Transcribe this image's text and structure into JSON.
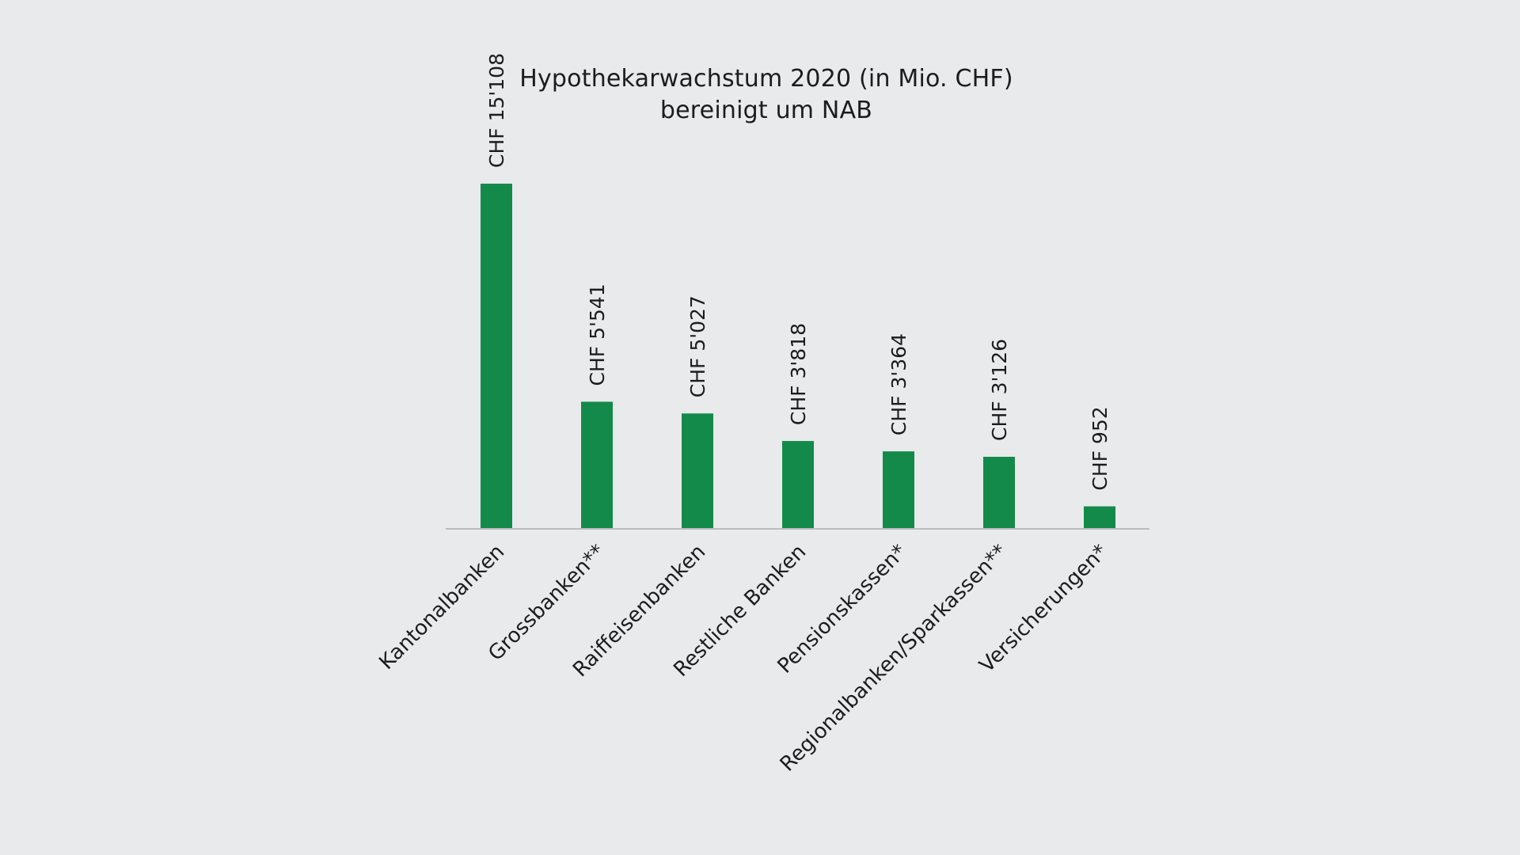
{
  "chart_data": {
    "type": "bar",
    "title": "Hypothekarwachstum 2020 (in Mio. CHF)",
    "subtitle": "bereinigt um NAB",
    "categories": [
      "Kantonalbanken",
      "Grossbanken**",
      "Raiffeisenbanken",
      "Restliche Banken",
      "Pensionskassen*",
      "Regionalbanken/Sparkassen**",
      "Versicherungen*"
    ],
    "values": [
      15108,
      5541,
      5027,
      3818,
      3364,
      3126,
      952
    ],
    "data_labels": [
      "CHF 15'108",
      "CHF 5'541",
      "CHF 5'027",
      "CHF 3'818",
      "CHF 3'364",
      "CHF 3'126",
      "CHF 952"
    ],
    "xlabel": "",
    "ylabel": "",
    "ylim": [
      0,
      15108
    ],
    "grid": false,
    "legend": "none",
    "colors": {
      "bar": "#138a4a",
      "axis": "#b9bcc0",
      "text": "#1c1c1c",
      "background": "#e9eaec"
    }
  }
}
